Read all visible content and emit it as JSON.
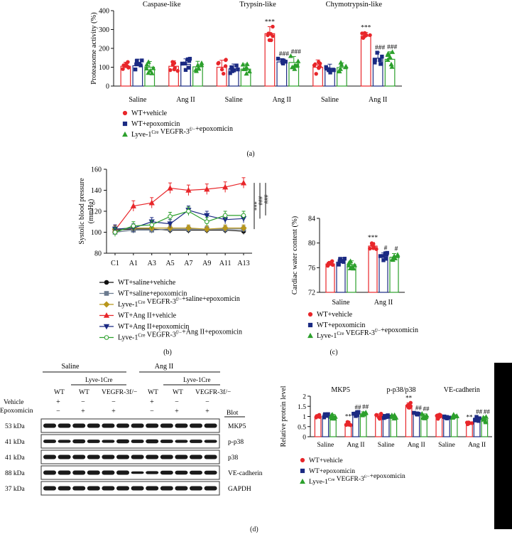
{
  "panel_labels": {
    "a": "(a)",
    "b": "(b)",
    "c": "(c)",
    "d": "(d)"
  },
  "colors": {
    "red": "#e8262a",
    "navy": "#1b2a83",
    "green": "#2ca02c",
    "black": "#111111",
    "gray": "#6b7b8f",
    "olive": "#b8961b"
  },
  "chart_data": [
    {
      "id": "a",
      "type": "bar",
      "ylabel": "Proteasome activity (%)",
      "ylim": [
        0,
        400
      ],
      "yticks": [
        0,
        100,
        200,
        300,
        400
      ],
      "groups": [
        "Caspase-like",
        "Trypsin-like",
        "Chymotrypsin-like"
      ],
      "categories": [
        "Saline",
        "Ang II",
        "Saline",
        "Ang II",
        "Saline",
        "Ang II"
      ],
      "series": [
        {
          "name": "WT+vehicle",
          "values": [
            105,
            105,
            100,
            278,
            100,
            265
          ]
        },
        {
          "name": "WT+epoxomicin",
          "values": [
            108,
            115,
            92,
            128,
            95,
            148
          ]
        },
        {
          "name": "Lyve-1Cre VEGFR-3f/−+epoxomicin",
          "values": [
            100,
            102,
            90,
            125,
            98,
            142
          ]
        }
      ],
      "annotations": [
        {
          "category_index": 3,
          "series_index": 0,
          "text": "***"
        },
        {
          "category_index": 3,
          "series_index": 1,
          "text": "###"
        },
        {
          "category_index": 3,
          "series_index": 2,
          "text": "###"
        },
        {
          "category_index": 5,
          "series_index": 0,
          "text": "***"
        },
        {
          "category_index": 5,
          "series_index": 1,
          "text": "###"
        },
        {
          "category_index": 5,
          "series_index": 2,
          "text": "###"
        }
      ],
      "legend": [
        "WT+vehicle",
        "WT+epoxomicin",
        "Lyve-1Cre VEGFR-3f/−+epoxomicin"
      ]
    },
    {
      "id": "b",
      "type": "line",
      "ylabel": "Systolic blood pressure (mmHg)",
      "ylim": [
        80,
        160
      ],
      "yticks": [
        80,
        100,
        120,
        140,
        160
      ],
      "x": [
        "C1",
        "A1",
        "A3",
        "A5",
        "A7",
        "A9",
        "A11",
        "A13"
      ],
      "series": [
        {
          "name": "WT+saline+vehiche",
          "values": [
            102,
            103,
            103,
            102,
            102,
            102,
            102,
            101
          ]
        },
        {
          "name": "WT+saline+epoxomicin",
          "values": [
            100,
            102,
            102,
            103,
            103,
            103,
            103,
            103
          ]
        },
        {
          "name": "Lyve-1Cre VEGFR-3f/−+saline+epoxomicin",
          "values": [
            103,
            104,
            104,
            104,
            104,
            103,
            104,
            104
          ]
        },
        {
          "name": "WT+Ang II+vehicle",
          "values": [
            102,
            125,
            128,
            142,
            140,
            141,
            143,
            147
          ]
        },
        {
          "name": "WT+Ang II+epoxomicin",
          "values": [
            103,
            104,
            110,
            108,
            121,
            116,
            112,
            113
          ]
        },
        {
          "name": "Lyve-1Cre VEGFR-3f/−+Ang II+epoxomicin",
          "values": [
            100,
            106,
            107,
            115,
            120,
            110,
            116,
            116
          ]
        }
      ],
      "significance": [
        "***",
        "###",
        "###"
      ]
    },
    {
      "id": "c",
      "type": "bar",
      "ylabel": "Cardiac water content (%)",
      "ylim": [
        72,
        84
      ],
      "yticks": [
        72,
        76,
        80,
        84
      ],
      "categories": [
        "Saline",
        "Ang II"
      ],
      "series": [
        {
          "name": "WT+vehicle",
          "values": [
            76.6,
            79.5
          ]
        },
        {
          "name": "WT+epoxomicin",
          "values": [
            76.9,
            77.8
          ]
        },
        {
          "name": "Lyve-1Cre VEGFR-3f/−+epoxomicin",
          "values": [
            76.5,
            77.7
          ]
        }
      ],
      "annotations": [
        {
          "category_index": 1,
          "series_index": 0,
          "text": "***"
        },
        {
          "category_index": 1,
          "series_index": 1,
          "text": "#"
        },
        {
          "category_index": 1,
          "series_index": 2,
          "text": "#"
        }
      ],
      "legend": [
        "WT+vehicle",
        "WT+epoxomicin",
        "Lyve-1Cre VEGFR-3f/−+epoxomicin"
      ]
    },
    {
      "id": "d",
      "type": "bar",
      "ylabel": "Relative protein level",
      "ylim": [
        0,
        2.0
      ],
      "yticks": [
        0,
        0.5,
        1.0,
        1.5,
        2.0
      ],
      "groups": [
        "MKP5",
        "p-p38/p38",
        "VE-cadherin"
      ],
      "categories": [
        "Saline",
        "Ang II",
        "Saline",
        "Ang II",
        "Saline",
        "Ang II"
      ],
      "series": [
        {
          "name": "WT+vehicle",
          "values": [
            1.0,
            0.65,
            1.0,
            1.55,
            1.0,
            0.65
          ]
        },
        {
          "name": "WT+epoxomicin",
          "values": [
            1.02,
            1.12,
            1.0,
            1.12,
            0.98,
            0.88
          ]
        },
        {
          "name": "Lyve-1Cre VEGFR-3f/−+epoxomicin",
          "values": [
            1.0,
            1.13,
            0.98,
            1.02,
            1.0,
            0.85
          ]
        }
      ],
      "annotations": [
        {
          "category_index": 1,
          "series_index": 0,
          "text": "**"
        },
        {
          "category_index": 1,
          "series_index": 1,
          "text": "##"
        },
        {
          "category_index": 1,
          "series_index": 2,
          "text": "##"
        },
        {
          "category_index": 3,
          "series_index": 0,
          "text": "**"
        },
        {
          "category_index": 3,
          "series_index": 1,
          "text": "##"
        },
        {
          "category_index": 3,
          "series_index": 2,
          "text": "##"
        },
        {
          "category_index": 5,
          "series_index": 0,
          "text": "**"
        },
        {
          "category_index": 5,
          "series_index": 1,
          "text": "##"
        },
        {
          "category_index": 5,
          "series_index": 2,
          "text": "##"
        }
      ],
      "legend": [
        "WT+vehicle",
        "WT+epoxomicin",
        "Lyve-1Cre VEGFR-3f/−+epoxomicin"
      ]
    }
  ],
  "western_blot": {
    "groups": [
      "Saline",
      "Ang II"
    ],
    "subgroup": "Lyve-1Cre",
    "lanes": [
      "WT",
      "WT",
      "VEGFR-3f/−",
      "WT",
      "WT",
      "VEGFR-3f/−"
    ],
    "vehicle_label": "Vehicle",
    "epoxomicin_label": "Epoxomicin",
    "vehicle_marks": [
      "+",
      "−",
      "−",
      "+",
      "−",
      "−"
    ],
    "epoxomicin_marks": [
      "−",
      "+",
      "+",
      "−",
      "+",
      "+"
    ],
    "blot_label": "Blot",
    "rows": [
      {
        "kda": "53 kDa",
        "name": "MKP5"
      },
      {
        "kda": "41 kDa",
        "name": "p-p38"
      },
      {
        "kda": "41 kDa",
        "name": "p38"
      },
      {
        "kda": "88 kDa",
        "name": "VE-cadherin"
      },
      {
        "kda": "37 kDa",
        "name": "GAPDH"
      }
    ]
  }
}
